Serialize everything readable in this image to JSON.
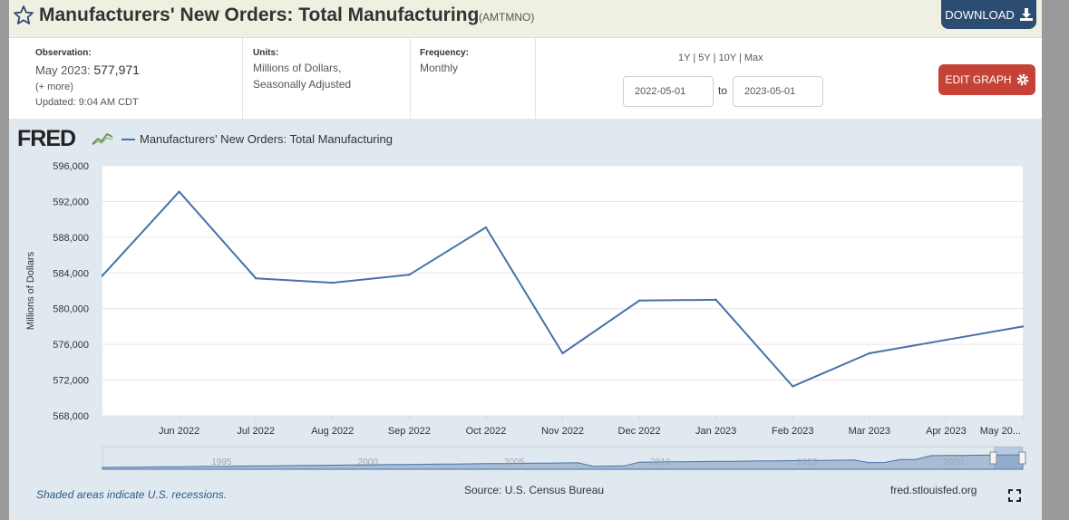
{
  "header": {
    "title": "Manufacturers' New Orders: Total Manufacturing",
    "code": "(AMTMNO)",
    "download_label": "DOWNLOAD",
    "background": "#eff0e2",
    "download_color": "#2d4c72"
  },
  "meta": {
    "observation": {
      "label": "Observation:",
      "period": "May 2023:",
      "value": "577,971",
      "more": "(+ more)",
      "updated": "Updated: 9:04 AM CDT"
    },
    "units": {
      "label": "Units:",
      "line1": "Millions of Dollars,",
      "line2": "Seasonally Adjusted"
    },
    "frequency": {
      "label": "Frequency:",
      "value": "Monthly"
    },
    "range": {
      "r1y": "1Y",
      "r5y": "5Y",
      "r10y": "10Y",
      "rmax": "Max",
      "sep": "|",
      "start": "2022-05-01",
      "to": "to",
      "end": "2023-05-01"
    },
    "edit_label": "EDIT GRAPH",
    "edit_color": "#c64236"
  },
  "graph": {
    "logo": "FRED",
    "legend": "Manufacturers' New Orders: Total Manufacturing",
    "footer_note": "Shaded areas indicate U.S. recessions.",
    "source": "Source: U.S. Census Bureau",
    "link": "fred.stlouisfed.org",
    "background": "#e1e9f0",
    "line_color": "#4572a7"
  },
  "chart_data": {
    "type": "line",
    "title": "",
    "xlabel": "",
    "ylabel": "Millions of Dollars",
    "ylim": [
      568000,
      596000
    ],
    "ytick_values": [
      568000,
      572000,
      576000,
      580000,
      584000,
      588000,
      592000,
      596000
    ],
    "ytick_labels": [
      "568,000",
      "572,000",
      "576,000",
      "580,000",
      "584,000",
      "588,000",
      "592,000",
      "596,000"
    ],
    "xtick_labels": [
      "Jun 2022",
      "Jul 2022",
      "Aug 2022",
      "Sep 2022",
      "Oct 2022",
      "Nov 2022",
      "Dec 2022",
      "Jan 2023",
      "Feb 2023",
      "Mar 2023",
      "Apr 2023",
      "May 20..."
    ],
    "x": [
      "2022-05-01",
      "2022-06-01",
      "2022-07-01",
      "2022-08-01",
      "2022-09-01",
      "2022-10-01",
      "2022-11-01",
      "2022-12-01",
      "2023-01-01",
      "2023-02-01",
      "2023-03-01",
      "2023-04-01",
      "2023-05-01"
    ],
    "series": [
      {
        "name": "Manufacturers' New Orders: Total Manufacturing",
        "values": [
          583700,
          593100,
          583400,
          582900,
          583800,
          589100,
          575000,
          580900,
          581000,
          571300,
          575000,
          576500,
          578000
        ]
      }
    ],
    "grid": true,
    "legend_position": "top-left",
    "navigator_labels": [
      "1995",
      "2000",
      "2005",
      "2010",
      "2015",
      "2020"
    ]
  }
}
